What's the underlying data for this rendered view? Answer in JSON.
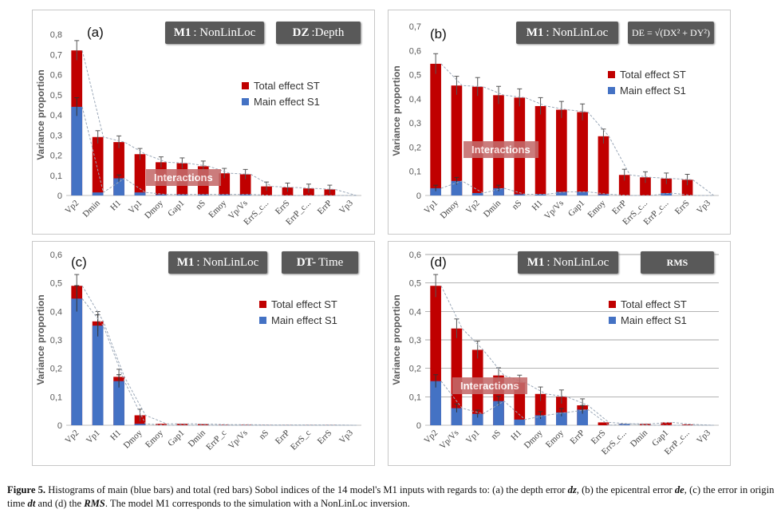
{
  "colors": {
    "total": "#c00000",
    "main": "#4472c4",
    "axis_text": "#595959",
    "trend": "#9aa7b7"
  },
  "legend": {
    "total": "Total effect ST",
    "main": "Main effect S1"
  },
  "interactions_label": "Interactions",
  "caption": {
    "figure": "Figure 5.",
    "text1": " Histograms of main (blue bars) and total (red bars) Sobol indices of the 14 model's M1 inputs with regards to: (a) the depth error ",
    "dz": "dz",
    "text2": ", (b) the epicentral error ",
    "de": "de",
    "text3": ", (c) the error in origin time ",
    "dt": "dt",
    "text4": " and (d) the ",
    "rms": "RMS",
    "text5": ". The model M1 corresponds to the simulation with a NonLinLoc inversion."
  },
  "panels": {
    "a": {
      "letter": "(a)",
      "model_bold": "M1",
      "model_text": ": NonLinLoc",
      "output_bold": "DZ",
      "output_text": ":Depth"
    },
    "b": {
      "letter": "(b)",
      "model_bold": "M1",
      "model_text": ": NonLinLoc",
      "output_text": "DE = √(DX² + DY²)"
    },
    "c": {
      "letter": "(c)",
      "model_bold": "M1",
      "model_text": ": NonLinLoc",
      "output_bold": "DT-",
      "output_text": "Time"
    },
    "d": {
      "letter": "(d)",
      "model_bold": "M1",
      "model_text": ": NonLinLoc",
      "output_text": "RMS"
    }
  },
  "chart_data": [
    {
      "id": "a",
      "type": "bar",
      "ylabel": "Variance proportion",
      "ylim": [
        0,
        0.8
      ],
      "yticks": [
        "0",
        "0,1",
        "0,2",
        "0,3",
        "0,4",
        "0,5",
        "0,6",
        "0,7",
        "0,8"
      ],
      "categories": [
        "Vp2",
        "Dmin",
        "H1",
        "Vp1",
        "Dmoy",
        "Gap1",
        "nS",
        "Emoy",
        "Vp/Vs",
        "ErrS_c...",
        "ErrS",
        "ErrP_c...",
        "ErrP",
        "Vp3"
      ],
      "series": [
        {
          "name": "Total effect ST",
          "values": [
            0.72,
            0.29,
            0.265,
            0.205,
            0.165,
            0.16,
            0.145,
            0.11,
            0.105,
            0.045,
            0.04,
            0.035,
            0.03,
            0.0
          ]
        },
        {
          "name": "Main effect S1",
          "values": [
            0.44,
            0.015,
            0.085,
            0.015,
            0.005,
            0.005,
            0.005,
            0.005,
            0.005,
            0.0,
            0.0,
            0.0,
            0.0,
            0.0
          ]
        }
      ],
      "legend_position": "top-right",
      "grid": false
    },
    {
      "id": "b",
      "type": "bar",
      "ylabel": "Variance proportion",
      "ylim": [
        0,
        0.7
      ],
      "yticks": [
        "0",
        "0,1",
        "0,2",
        "0,3",
        "0,4",
        "0,5",
        "0,6",
        "0,7"
      ],
      "categories": [
        "Vp1",
        "Dmoy",
        "Vp2",
        "Dmin",
        "nS",
        "H1",
        "Vp/Vs",
        "Gap1",
        "Emoy",
        "ErrP",
        "ErrS_c...",
        "ErrP_c...",
        "ErrS",
        "Vp3"
      ],
      "series": [
        {
          "name": "Total effect ST",
          "values": [
            0.545,
            0.455,
            0.45,
            0.415,
            0.405,
            0.37,
            0.355,
            0.345,
            0.245,
            0.085,
            0.075,
            0.07,
            0.065,
            0.0
          ]
        },
        {
          "name": "Main effect S1",
          "values": [
            0.03,
            0.06,
            0.01,
            0.03,
            0.005,
            0.005,
            0.015,
            0.015,
            0.005,
            0.0,
            0.0,
            0.01,
            0.0,
            0.0
          ]
        }
      ],
      "legend_position": "top-right",
      "grid": false
    },
    {
      "id": "c",
      "type": "bar",
      "ylabel": "Variance proportion",
      "ylim": [
        0,
        0.6
      ],
      "yticks": [
        "0",
        "0,1",
        "0,2",
        "0,3",
        "0,4",
        "0,5",
        "0,6"
      ],
      "categories": [
        "Vp2",
        "Vp1",
        "H1",
        "Dmoy",
        "Emoy",
        "Gap1",
        "Dmin",
        "ErrP_c",
        "Vp/Vs",
        "nS",
        "ErrP",
        "ErrS_c",
        "ErrS",
        "Vp3"
      ],
      "series": [
        {
          "name": "Total effect ST",
          "values": [
            0.49,
            0.365,
            0.17,
            0.035,
            0.005,
            0.005,
            0.004,
            0.002,
            0.002,
            0.001,
            0.001,
            0.001,
            0.001,
            0.0
          ]
        },
        {
          "name": "Main effect S1",
          "values": [
            0.445,
            0.35,
            0.155,
            0.005,
            0.0,
            0.0,
            0.0,
            0.0,
            0.0,
            0.0,
            0.0,
            0.0,
            0.0,
            0.0
          ]
        }
      ],
      "legend_position": "top-right",
      "grid": false
    },
    {
      "id": "d",
      "type": "bar",
      "ylabel": "Variance proportion",
      "ylim": [
        0,
        0.6
      ],
      "yticks": [
        "0",
        "0,1",
        "0,2",
        "0,3",
        "0,4",
        "0,5",
        "0,6"
      ],
      "categories": [
        "Vp2",
        "Vp/Vs",
        "Vp1",
        "nS",
        "H1",
        "Dmoy",
        "Emoy",
        "ErrP",
        "ErrS",
        "ErrS_c...",
        "Dmin",
        "Gap1",
        "ErrP_c...",
        "Vp3"
      ],
      "series": [
        {
          "name": "Total effect ST",
          "values": [
            0.49,
            0.34,
            0.265,
            0.175,
            0.15,
            0.11,
            0.1,
            0.07,
            0.01,
            0.005,
            0.005,
            0.01,
            0.003,
            0.0
          ]
        },
        {
          "name": "Main effect S1",
          "values": [
            0.155,
            0.06,
            0.04,
            0.085,
            0.02,
            0.035,
            0.045,
            0.055,
            0.0,
            0.005,
            0.0,
            0.0,
            0.0,
            0.0
          ]
        }
      ],
      "legend_position": "top-right",
      "grid": true
    }
  ]
}
